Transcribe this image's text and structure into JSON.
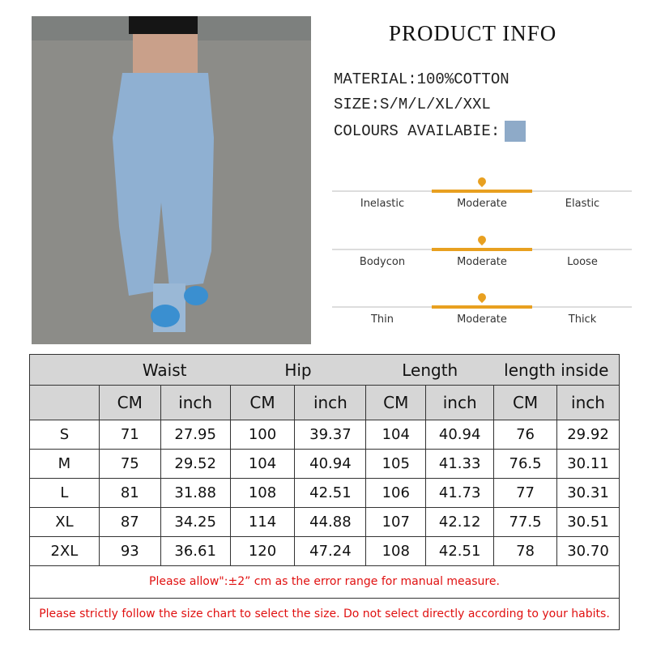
{
  "title": "PRODUCT INFO",
  "specs": {
    "material": "MATERIAL:100%COTTON",
    "size": "SIZE:S/M/L/XL/XXL",
    "colours": "COLOURS AVAILABIE:",
    "colour_swatch": "#8eaac8"
  },
  "scales": [
    {
      "left": "Inelastic",
      "mid": "Moderate",
      "right": "Elastic",
      "selected": "Moderate"
    },
    {
      "left": "Bodycon",
      "mid": "Moderate",
      "right": "Loose",
      "selected": "Moderate"
    },
    {
      "left": "Thin",
      "mid": "Moderate",
      "right": "Thick",
      "selected": "Moderate"
    }
  ],
  "accent": "#e8a020",
  "table": {
    "groups": [
      "Waist",
      "Hip",
      "Length",
      "length inside"
    ],
    "units": [
      "CM",
      "inch",
      "CM",
      "inch",
      "CM",
      "inch",
      "CM",
      "inch"
    ],
    "rows": [
      [
        "S",
        "71",
        "27.95",
        "100",
        "39.37",
        "104",
        "40.94",
        "76",
        "29.92"
      ],
      [
        "M",
        "75",
        "29.52",
        "104",
        "40.94",
        "105",
        "41.33",
        "76.5",
        "30.11"
      ],
      [
        "L",
        "81",
        "31.88",
        "108",
        "42.51",
        "106",
        "41.73",
        "77",
        "30.31"
      ],
      [
        "XL",
        "87",
        "34.25",
        "114",
        "44.88",
        "107",
        "42.12",
        "77.5",
        "30.51"
      ],
      [
        "2XL",
        "93",
        "36.61",
        "120",
        "47.24",
        "108",
        "42.51",
        "78",
        "30.70"
      ]
    ],
    "note1": "Please allow\":±2”  cm as the error range for manual measure.",
    "note2": "Please strictly follow the size chart to select the size. Do not select directly according to your habits."
  }
}
